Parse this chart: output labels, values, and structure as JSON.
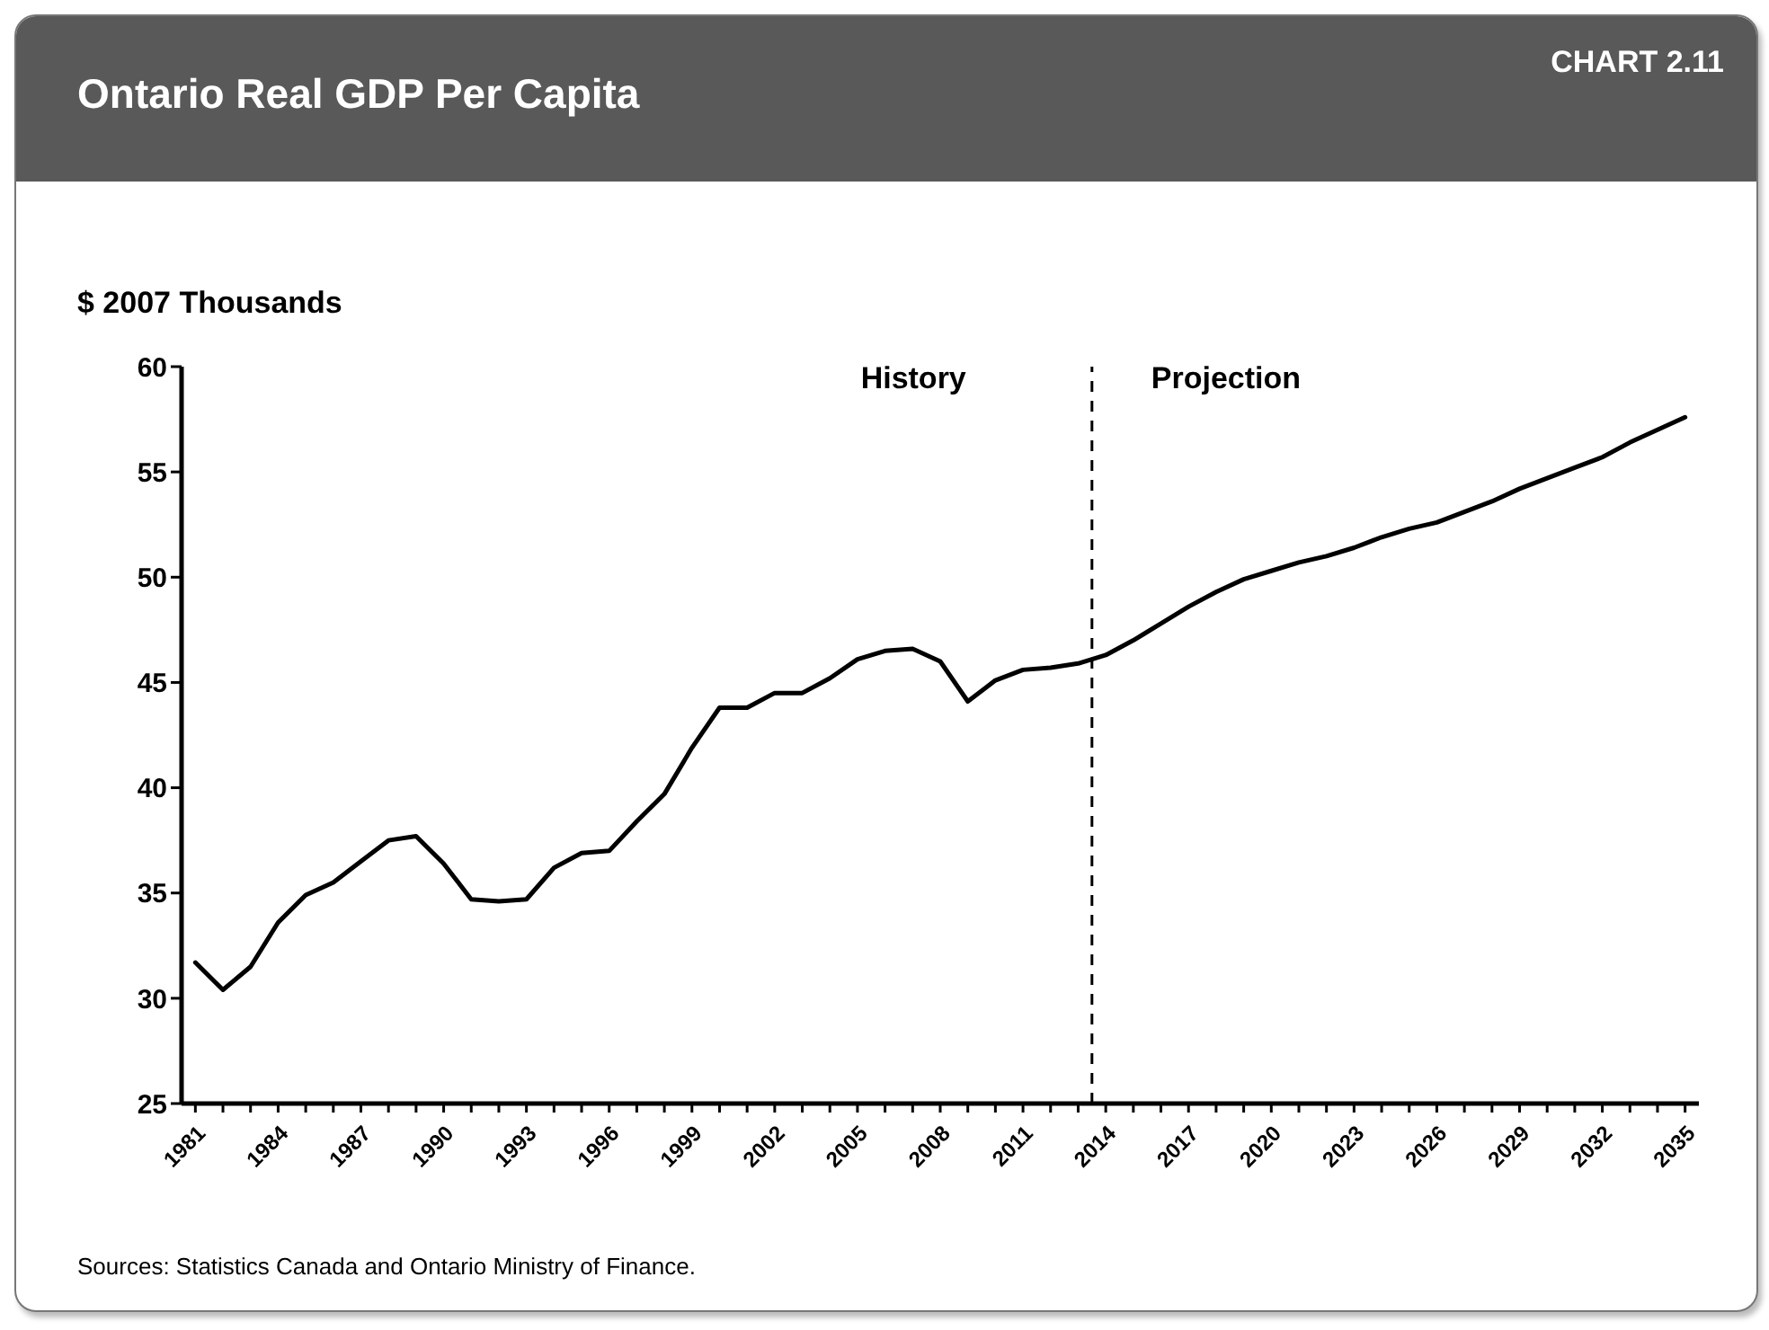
{
  "chart_data": {
    "type": "line",
    "title": "Ontario Real GDP Per Capita",
    "subtitle": "CHART 2.11",
    "ylabel": "$ 2007 Thousands",
    "x": [
      1981,
      1982,
      1983,
      1984,
      1985,
      1986,
      1987,
      1988,
      1989,
      1990,
      1991,
      1992,
      1993,
      1994,
      1995,
      1996,
      1997,
      1998,
      1999,
      2000,
      2001,
      2002,
      2003,
      2004,
      2005,
      2006,
      2007,
      2008,
      2009,
      2010,
      2011,
      2012,
      2013,
      2014,
      2015,
      2016,
      2017,
      2018,
      2019,
      2020,
      2021,
      2022,
      2023,
      2024,
      2025,
      2026,
      2027,
      2028,
      2029,
      2030,
      2031,
      2032,
      2033,
      2034,
      2035
    ],
    "series": [
      {
        "color": "#000000",
        "values": [
          31.7,
          30.4,
          31.5,
          33.6,
          34.9,
          35.5,
          36.5,
          37.5,
          37.7,
          36.4,
          34.7,
          34.6,
          34.7,
          36.2,
          36.9,
          37.0,
          38.4,
          39.7,
          41.9,
          43.8,
          43.8,
          44.5,
          44.5,
          45.2,
          46.1,
          46.5,
          46.6,
          46.0,
          44.1,
          45.1,
          45.6,
          45.7,
          45.9,
          46.3,
          47.0,
          47.8,
          48.6,
          49.3,
          49.9,
          50.3,
          50.7,
          51.0,
          51.4,
          51.9,
          52.3,
          52.6,
          53.1,
          53.6,
          54.2,
          54.7,
          55.2,
          55.7,
          56.4,
          57.0,
          57.6
        ]
      }
    ],
    "xlim": [
      1980.5,
      2035.5
    ],
    "xticks": [
      1981,
      {
        "value": 1982,
        "label": null
      },
      {
        "value": 1983,
        "label": null
      },
      1984,
      {
        "value": 1985,
        "label": null
      },
      {
        "value": 1986,
        "label": null
      },
      1987,
      {
        "value": 1988,
        "label": null
      },
      {
        "value": 1989,
        "label": null
      },
      1990,
      {
        "value": 1991,
        "label": null
      },
      {
        "value": 1992,
        "label": null
      },
      1993,
      {
        "value": 1994,
        "label": null
      },
      {
        "value": 1995,
        "label": null
      },
      1996,
      {
        "value": 1997,
        "label": null
      },
      {
        "value": 1998,
        "label": null
      },
      1999,
      {
        "value": 2000,
        "label": null
      },
      {
        "value": 2001,
        "label": null
      },
      2002,
      {
        "value": 2003,
        "label": null
      },
      {
        "value": 2004,
        "label": null
      },
      2005,
      {
        "value": 2006,
        "label": null
      },
      {
        "value": 2007,
        "label": null
      },
      2008,
      {
        "value": 2009,
        "label": null
      },
      {
        "value": 2010,
        "label": null
      },
      2011,
      {
        "value": 2012,
        "label": null
      },
      {
        "value": 2013,
        "label": null
      },
      2014,
      {
        "value": 2015,
        "label": null
      },
      {
        "value": 2016,
        "label": null
      },
      2017,
      {
        "value": 2018,
        "label": null
      },
      {
        "value": 2019,
        "label": null
      },
      2020,
      {
        "value": 2021,
        "label": null
      },
      {
        "value": 2022,
        "label": null
      },
      2023,
      {
        "value": 2024,
        "label": null
      },
      {
        "value": 2025,
        "label": null
      },
      2026,
      {
        "value": 2027,
        "label": null
      },
      {
        "value": 2028,
        "label": null
      },
      2029,
      {
        "value": 2030,
        "label": null
      },
      {
        "value": 2031,
        "label": null
      },
      2032,
      {
        "value": 2033,
        "label": null
      },
      {
        "value": 2034,
        "label": null
      },
      2035
    ],
    "ylim": [
      25,
      60
    ],
    "yticks": [
      25,
      30,
      35,
      40,
      45,
      50,
      55,
      60
    ],
    "grid": false,
    "legend": false,
    "marker": "none",
    "line_style": "solid",
    "ref_lines": [
      {
        "axis": "x",
        "value": 2013.5,
        "color": "#000000",
        "line_style": "dashed"
      }
    ],
    "annotations": [
      "History",
      "Projection",
      "Sources: Statistics Canada and Ontario Ministry of Finance."
    ]
  }
}
